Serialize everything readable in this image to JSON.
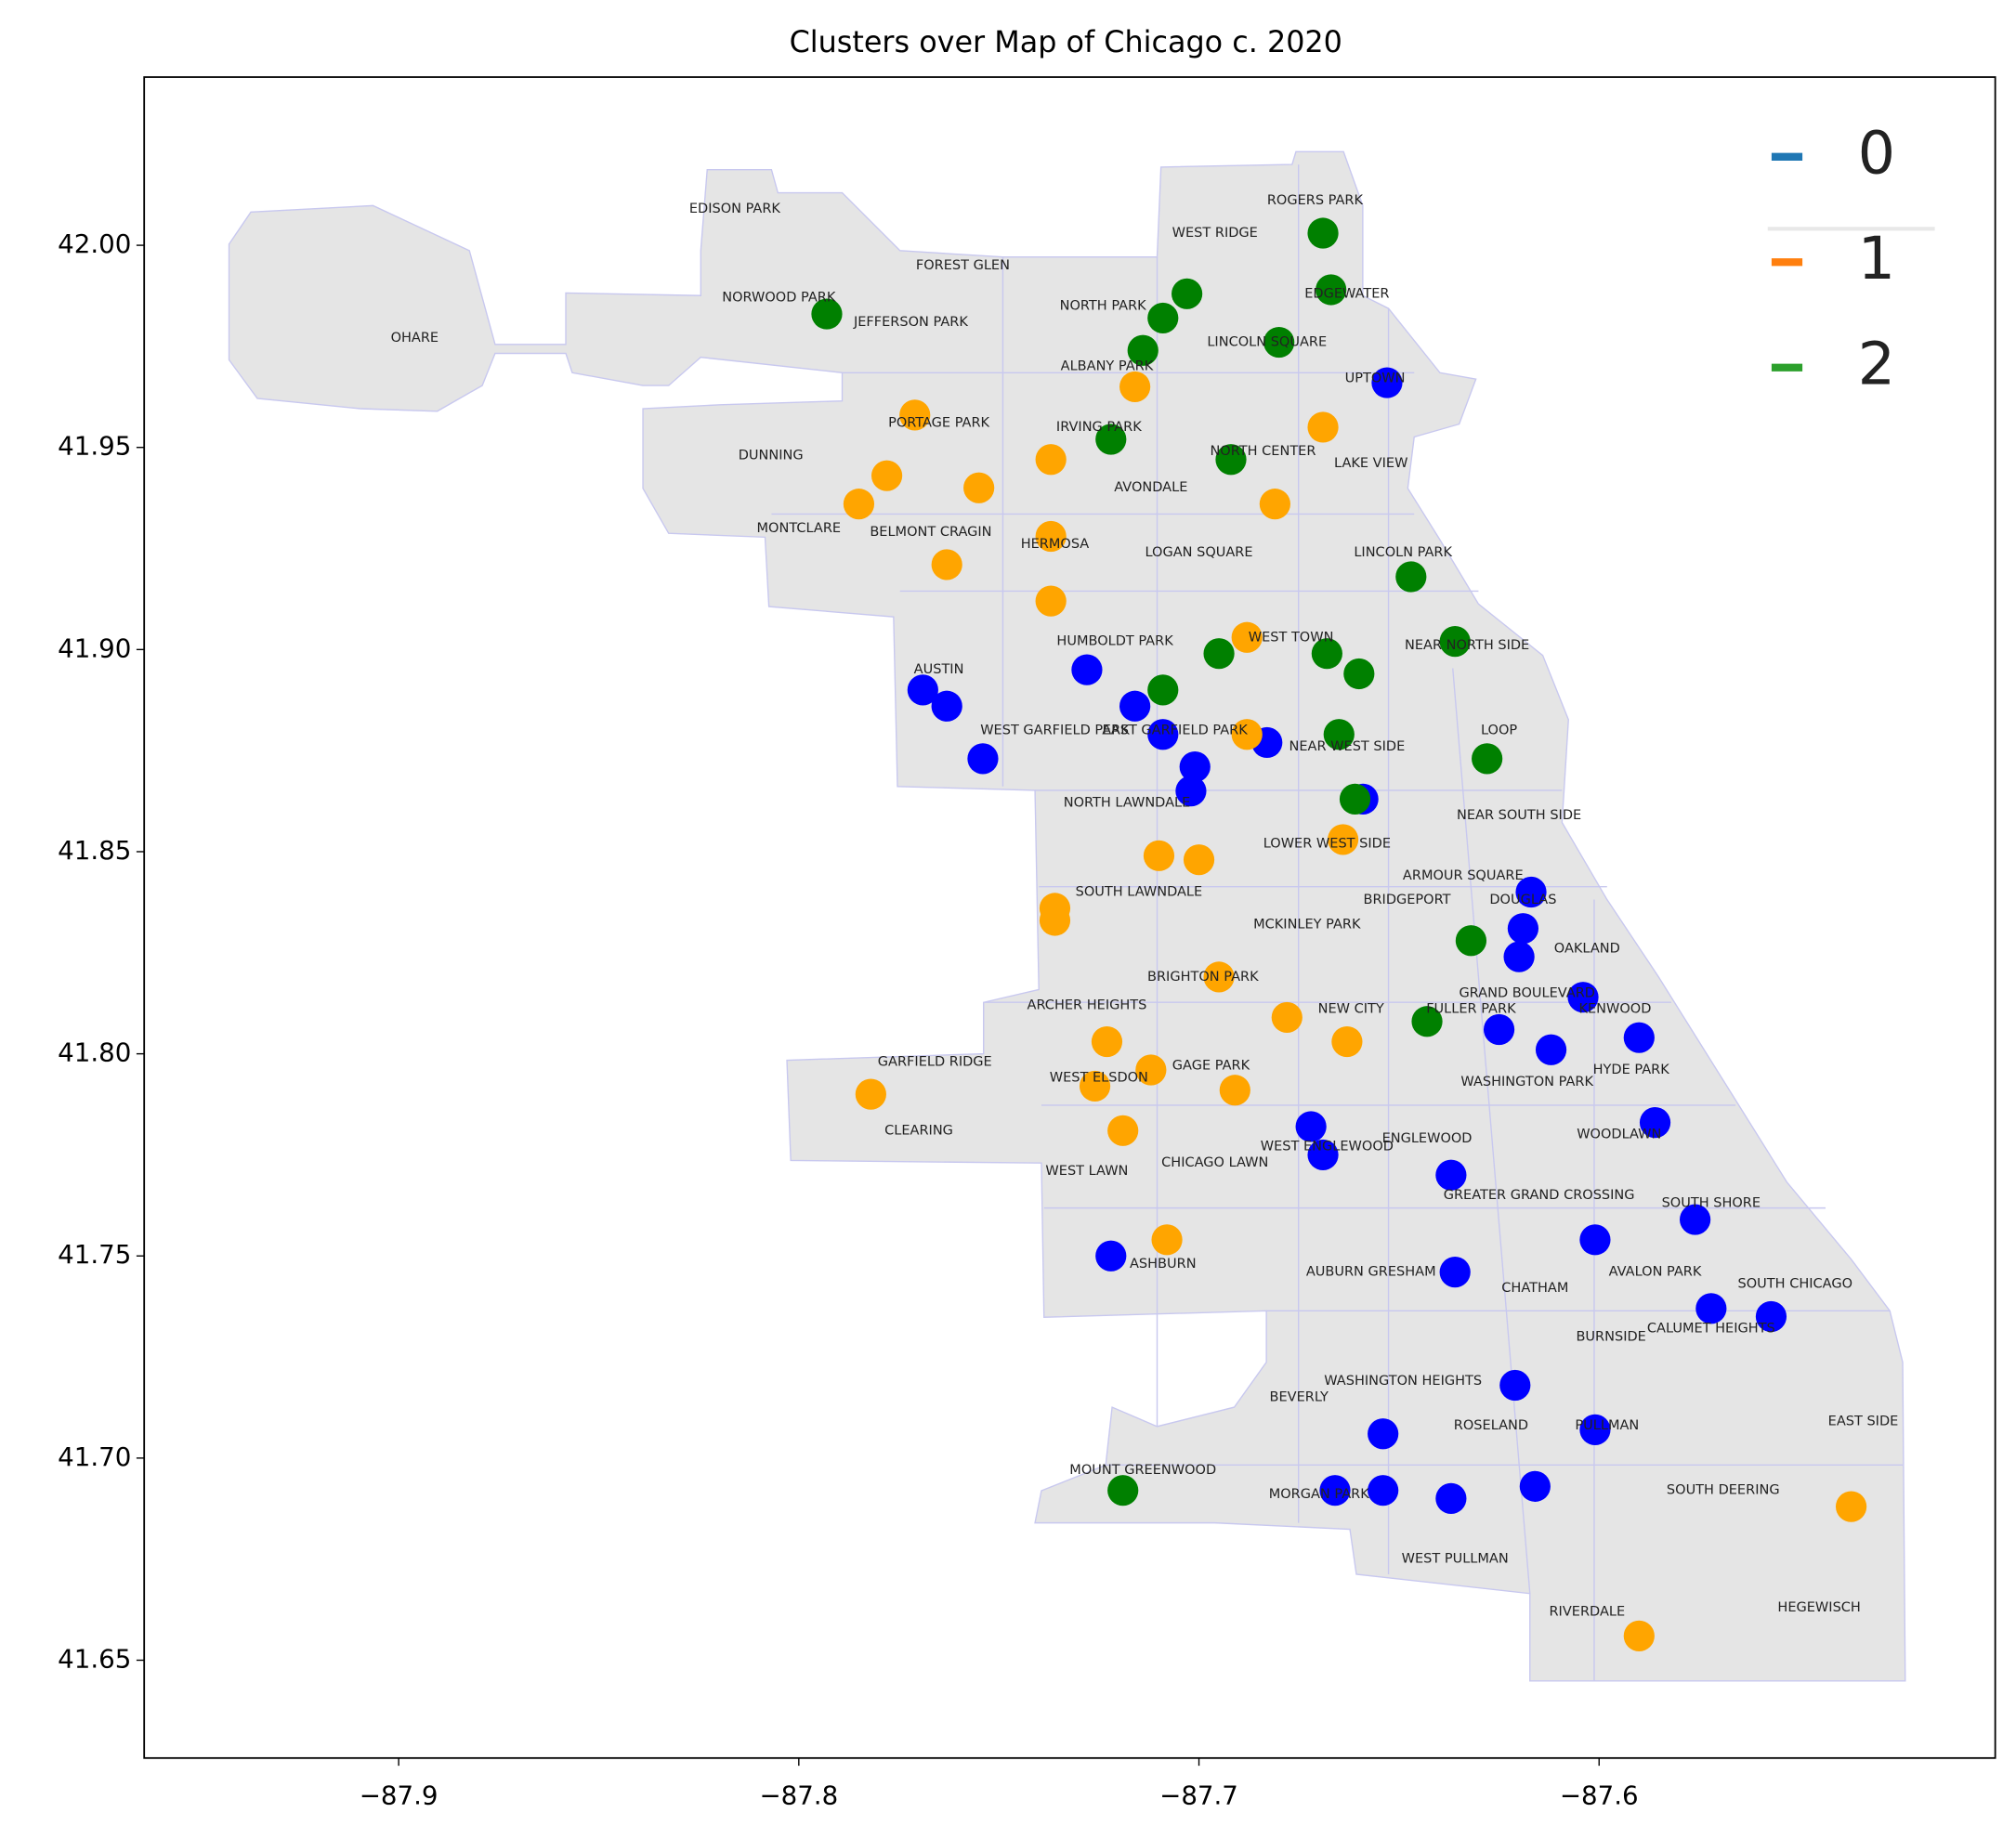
{
  "chart_data": {
    "type": "scatter",
    "title": "Clusters over Map of Chicago c. 2020",
    "xlim": [
      -87.9636,
      -87.501
    ],
    "ylim": [
      41.6258,
      42.0416
    ],
    "xticks": [
      {
        "value": -87.9,
        "label": "−87.9"
      },
      {
        "value": -87.8,
        "label": "−87.8"
      },
      {
        "value": -87.7,
        "label": "−87.7"
      },
      {
        "value": -87.6,
        "label": "−87.6"
      }
    ],
    "yticks": [
      {
        "value": 42.0,
        "label": "42.00"
      },
      41.95,
      {
        "value": 41.9,
        "label": "41.90"
      },
      41.85,
      {
        "value": 41.8,
        "label": "41.80"
      },
      41.75,
      {
        "value": 41.7,
        "label": "41.70"
      },
      41.65
    ],
    "legend": "upper right",
    "legend_colors": [
      "#1f77b4",
      "#ff7f0e",
      "#2ca02c"
    ],
    "series": [
      {
        "name": "0",
        "color": "blue",
        "x": [
          -87.653,
          -87.769,
          -87.763,
          -87.754,
          -87.728,
          -87.716,
          -87.709,
          -87.701,
          -87.702,
          -87.683,
          -87.659,
          -87.617,
          -87.619,
          -87.62,
          -87.604,
          -87.625,
          -87.612,
          -87.59,
          -87.586,
          -87.672,
          -87.669,
          -87.637,
          -87.576,
          -87.601,
          -87.722,
          -87.636,
          -87.572,
          -87.557,
          -87.621,
          -87.654,
          -87.601,
          -87.666,
          -87.654,
          -87.637,
          -87.616
        ],
        "y": [
          41.966,
          41.89,
          41.886,
          41.873,
          41.895,
          41.886,
          41.879,
          41.871,
          41.865,
          41.877,
          41.863,
          41.84,
          41.831,
          41.824,
          41.814,
          41.806,
          41.801,
          41.804,
          41.783,
          41.782,
          41.775,
          41.77,
          41.759,
          41.754,
          41.75,
          41.746,
          41.737,
          41.735,
          41.718,
          41.706,
          41.707,
          41.692,
          41.692,
          41.69,
          41.693
        ]
      },
      {
        "name": "1",
        "color": "orange",
        "x": [
          -87.716,
          -87.771,
          -87.669,
          -87.737,
          -87.778,
          -87.755,
          -87.785,
          -87.681,
          -87.737,
          -87.763,
          -87.737,
          -87.688,
          -87.688,
          -87.664,
          -87.71,
          -87.7,
          -87.736,
          -87.736,
          -87.695,
          -87.678,
          -87.723,
          -87.663,
          -87.712,
          -87.782,
          -87.726,
          -87.691,
          -87.719,
          -87.708,
          -87.537,
          -87.59
        ],
        "y": [
          41.965,
          41.958,
          41.955,
          41.947,
          41.943,
          41.94,
          41.936,
          41.936,
          41.928,
          41.921,
          41.912,
          41.903,
          41.879,
          41.853,
          41.849,
          41.848,
          41.836,
          41.833,
          41.819,
          41.809,
          41.803,
          41.803,
          41.796,
          41.79,
          41.792,
          41.791,
          41.781,
          41.754,
          41.688,
          41.656
        ]
      },
      {
        "name": "2",
        "color": "green",
        "x": [
          -87.669,
          -87.667,
          -87.703,
          -87.793,
          -87.709,
          -87.714,
          -87.68,
          -87.722,
          -87.692,
          -87.647,
          -87.636,
          -87.695,
          -87.668,
          -87.66,
          -87.709,
          -87.665,
          -87.628,
          -87.661,
          -87.632,
          -87.643,
          -87.719
        ],
        "y": [
          42.003,
          41.989,
          41.988,
          41.983,
          41.982,
          41.974,
          41.976,
          41.952,
          41.947,
          41.918,
          41.902,
          41.899,
          41.899,
          41.894,
          41.89,
          41.879,
          41.873,
          41.863,
          41.828,
          41.808,
          41.692
        ]
      }
    ],
    "annotations": [
      {
        "text": "ROGERS PARK",
        "x": -87.671,
        "y": 42.011
      },
      {
        "text": "WEST RIDGE",
        "x": -87.696,
        "y": 42.003
      },
      {
        "text": "EDISON PARK",
        "x": -87.816,
        "y": 42.009
      },
      {
        "text": "FOREST GLEN",
        "x": -87.759,
        "y": 41.995
      },
      {
        "text": "NORWOOD PARK",
        "x": -87.805,
        "y": 41.987
      },
      {
        "text": "EDGEWATER",
        "x": -87.663,
        "y": 41.988
      },
      {
        "text": "NORTH PARK",
        "x": -87.724,
        "y": 41.985
      },
      {
        "text": "JEFFERSON PARK",
        "x": -87.772,
        "y": 41.981
      },
      {
        "text": "OHARE",
        "x": -87.896,
        "y": 41.977
      },
      {
        "text": "LINCOLN SQUARE",
        "x": -87.683,
        "y": 41.976
      },
      {
        "text": "ALBANY PARK",
        "x": -87.723,
        "y": 41.97
      },
      {
        "text": "UPTOWN",
        "x": -87.656,
        "y": 41.967
      },
      {
        "text": "PORTAGE PARK",
        "x": -87.765,
        "y": 41.956
      },
      {
        "text": "IRVING PARK",
        "x": -87.725,
        "y": 41.955
      },
      {
        "text": "DUNNING",
        "x": -87.807,
        "y": 41.948
      },
      {
        "text": "NORTH CENTER",
        "x": -87.684,
        "y": 41.949
      },
      {
        "text": "LAKE VIEW",
        "x": -87.657,
        "y": 41.946
      },
      {
        "text": "AVONDALE",
        "x": -87.712,
        "y": 41.94
      },
      {
        "text": "MONTCLARE",
        "x": -87.8,
        "y": 41.93
      },
      {
        "text": "BELMONT CRAGIN",
        "x": -87.767,
        "y": 41.929
      },
      {
        "text": "HERMOSA",
        "x": -87.736,
        "y": 41.926
      },
      {
        "text": "LOGAN SQUARE",
        "x": -87.7,
        "y": 41.924
      },
      {
        "text": "LINCOLN PARK",
        "x": -87.649,
        "y": 41.924
      },
      {
        "text": "HUMBOLDT PARK",
        "x": -87.721,
        "y": 41.902
      },
      {
        "text": "WEST TOWN",
        "x": -87.677,
        "y": 41.903
      },
      {
        "text": "NEAR NORTH SIDE",
        "x": -87.633,
        "y": 41.901
      },
      {
        "text": "AUSTIN",
        "x": -87.765,
        "y": 41.895
      },
      {
        "text": "WEST GARFIELD PARK",
        "x": -87.736,
        "y": 41.88
      },
      {
        "text": "EAST GARFIELD PARK",
        "x": -87.706,
        "y": 41.88
      },
      {
        "text": "NEAR WEST SIDE",
        "x": -87.663,
        "y": 41.876
      },
      {
        "text": "LOOP",
        "x": -87.625,
        "y": 41.88
      },
      {
        "text": "NORTH LAWNDALE",
        "x": -87.718,
        "y": 41.862
      },
      {
        "text": "NEAR SOUTH SIDE",
        "x": -87.62,
        "y": 41.859
      },
      {
        "text": "LOWER WEST SIDE",
        "x": -87.668,
        "y": 41.852
      },
      {
        "text": "SOUTH LAWNDALE",
        "x": -87.715,
        "y": 41.84
      },
      {
        "text": "ARMOUR SQUARE",
        "x": -87.634,
        "y": 41.844
      },
      {
        "text": "BRIDGEPORT",
        "x": -87.648,
        "y": 41.838
      },
      {
        "text": "DOUGLAS",
        "x": -87.619,
        "y": 41.838
      },
      {
        "text": "MCKINLEY PARK",
        "x": -87.673,
        "y": 41.832
      },
      {
        "text": "OAKLAND",
        "x": -87.603,
        "y": 41.826
      },
      {
        "text": "BRIGHTON PARK",
        "x": -87.699,
        "y": 41.819
      },
      {
        "text": "GRAND BOULEVARD",
        "x": -87.618,
        "y": 41.815
      },
      {
        "text": "ARCHER HEIGHTS",
        "x": -87.728,
        "y": 41.812
      },
      {
        "text": "NEW CITY",
        "x": -87.662,
        "y": 41.811
      },
      {
        "text": "FULLER PARK",
        "x": -87.632,
        "y": 41.811
      },
      {
        "text": "KENWOOD",
        "x": -87.596,
        "y": 41.811
      },
      {
        "text": "GARFIELD RIDGE",
        "x": -87.766,
        "y": 41.798
      },
      {
        "text": "GAGE PARK",
        "x": -87.697,
        "y": 41.797
      },
      {
        "text": "HYDE PARK",
        "x": -87.592,
        "y": 41.796
      },
      {
        "text": "WEST ELSDON",
        "x": -87.725,
        "y": 41.794
      },
      {
        "text": "WASHINGTON PARK",
        "x": -87.618,
        "y": 41.793
      },
      {
        "text": "CLEARING",
        "x": -87.77,
        "y": 41.781
      },
      {
        "text": "WOODLAWN",
        "x": -87.595,
        "y": 41.78
      },
      {
        "text": "WEST ENGLEWOOD",
        "x": -87.668,
        "y": 41.777
      },
      {
        "text": "ENGLEWOOD",
        "x": -87.643,
        "y": 41.779
      },
      {
        "text": "WEST LAWN",
        "x": -87.728,
        "y": 41.771
      },
      {
        "text": "CHICAGO LAWN",
        "x": -87.696,
        "y": 41.773
      },
      {
        "text": "GREATER GRAND CROSSING",
        "x": -87.615,
        "y": 41.765
      },
      {
        "text": "SOUTH SHORE",
        "x": -87.572,
        "y": 41.763
      },
      {
        "text": "ASHBURN",
        "x": -87.709,
        "y": 41.748
      },
      {
        "text": "AUBURN GRESHAM",
        "x": -87.657,
        "y": 41.746
      },
      {
        "text": "AVALON PARK",
        "x": -87.586,
        "y": 41.746
      },
      {
        "text": "CHATHAM",
        "x": -87.616,
        "y": 41.742
      },
      {
        "text": "SOUTH CHICAGO",
        "x": -87.551,
        "y": 41.743
      },
      {
        "text": "BURNSIDE",
        "x": -87.597,
        "y": 41.73
      },
      {
        "text": "CALUMET HEIGHTS",
        "x": -87.572,
        "y": 41.732
      },
      {
        "text": "WASHINGTON HEIGHTS",
        "x": -87.649,
        "y": 41.719
      },
      {
        "text": "BEVERLY",
        "x": -87.675,
        "y": 41.715
      },
      {
        "text": "ROSELAND",
        "x": -87.627,
        "y": 41.708
      },
      {
        "text": "PULLMAN",
        "x": -87.598,
        "y": 41.708
      },
      {
        "text": "EAST SIDE",
        "x": -87.534,
        "y": 41.709
      },
      {
        "text": "MOUNT GREENWOOD",
        "x": -87.714,
        "y": 41.697
      },
      {
        "text": "MORGAN PARK",
        "x": -87.67,
        "y": 41.691
      },
      {
        "text": "SOUTH DEERING",
        "x": -87.569,
        "y": 41.692
      },
      {
        "text": "WEST PULLMAN",
        "x": -87.636,
        "y": 41.675
      },
      {
        "text": "RIVERDALE",
        "x": -87.603,
        "y": 41.662
      },
      {
        "text": "HEGEWISCH",
        "x": -87.545,
        "y": 41.663
      }
    ]
  }
}
